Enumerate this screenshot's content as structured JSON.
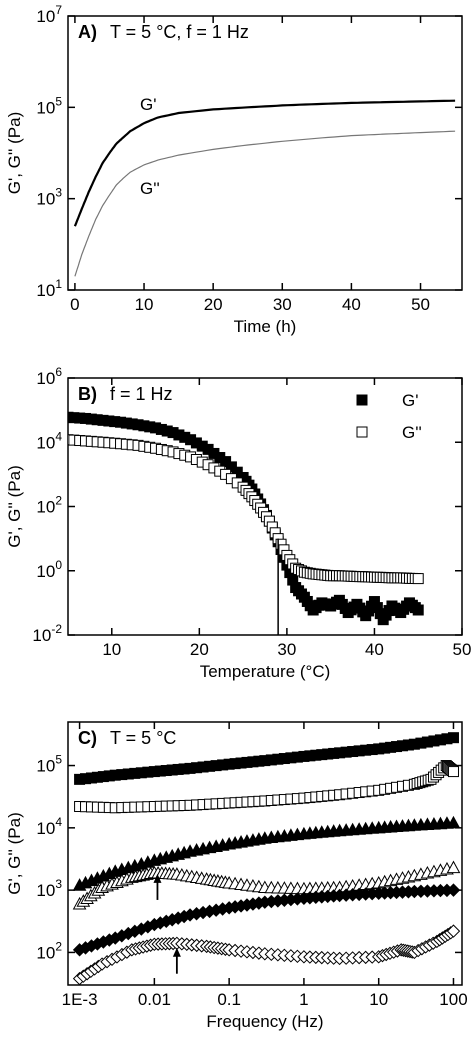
{
  "chart_data": [
    {
      "panel": "A)",
      "condition": "T = 5 °C, f = 1 Hz",
      "type": "line",
      "xlabel": "Time (h)",
      "ylabel": "G', G'' (Pa)",
      "xlim": [
        -1,
        56
      ],
      "ylim": [
        10,
        10000000
      ],
      "yscale": "log",
      "xticks": [
        "0",
        "10",
        "20",
        "30",
        "40",
        "50"
      ],
      "yticks": [
        "10^1",
        "10^3",
        "10^5",
        "10^7"
      ],
      "series": [
        {
          "name": "G'",
          "color": "#000000",
          "x": [
            0,
            1,
            2,
            3,
            4,
            5,
            6,
            7,
            8,
            10,
            12,
            15,
            20,
            25,
            30,
            35,
            40,
            45,
            50,
            55
          ],
          "values": [
            250,
            600,
            1400,
            3000,
            6000,
            10000,
            16000,
            22000,
            30000,
            45000,
            60000,
            75000,
            90000,
            100000,
            110000,
            118000,
            125000,
            130000,
            135000,
            140000
          ]
        },
        {
          "name": "G''",
          "color": "#777777",
          "x": [
            0,
            1,
            2,
            3,
            4,
            5,
            6,
            7,
            8,
            10,
            12,
            15,
            20,
            25,
            30,
            35,
            40,
            45,
            50,
            55
          ],
          "values": [
            20,
            60,
            150,
            350,
            700,
            1200,
            2000,
            2800,
            3800,
            5500,
            7000,
            9000,
            12000,
            15000,
            18000,
            21000,
            24000,
            26000,
            28000,
            30000
          ]
        }
      ]
    },
    {
      "panel": "B)",
      "condition": "f = 1 Hz",
      "type": "scatter",
      "xlabel": "Temperature (°C)",
      "ylabel": "G', G'' (Pa)",
      "xlim": [
        5,
        50
      ],
      "ylim": [
        0.01,
        1000000
      ],
      "yscale": "log",
      "xticks": [
        "10",
        "20",
        "30",
        "40",
        "50"
      ],
      "yticks": [
        "10^-2",
        "10^0",
        "10^2",
        "10^4",
        "10^6"
      ],
      "legend_position": "top-right",
      "marker_line_x": 29,
      "series": [
        {
          "name": "G'",
          "marker": "filled-square",
          "x": [
            5,
            7,
            9,
            11,
            13,
            15,
            17,
            19,
            21,
            23,
            25,
            26,
            27,
            28,
            29,
            30,
            31,
            32,
            33,
            34,
            35,
            36,
            37,
            38,
            39,
            40,
            41,
            42,
            43,
            44,
            45
          ],
          "values": [
            60000,
            55000,
            48000,
            42000,
            35000,
            28000,
            20000,
            12000,
            6000,
            2500,
            800,
            350,
            120,
            35,
            8,
            1.5,
            0.3,
            0.15,
            0.06,
            0.1,
            0.08,
            0.12,
            0.05,
            0.09,
            0.04,
            0.11,
            0.03,
            0.08,
            0.05,
            0.1,
            0.06
          ]
        },
        {
          "name": "G''",
          "marker": "open-square",
          "x": [
            5,
            7,
            9,
            11,
            13,
            15,
            17,
            19,
            21,
            23,
            25,
            26,
            27,
            28,
            29,
            30,
            31,
            32,
            33,
            34,
            35,
            36,
            37,
            38,
            39,
            40,
            41,
            42,
            43,
            44,
            45
          ],
          "values": [
            12000,
            11000,
            10000,
            9000,
            8000,
            6500,
            5000,
            3500,
            2000,
            1000,
            400,
            200,
            90,
            35,
            10,
            3,
            1.2,
            0.9,
            0.8,
            0.75,
            0.7,
            0.7,
            0.68,
            0.66,
            0.65,
            0.63,
            0.62,
            0.6,
            0.6,
            0.58,
            0.57
          ]
        }
      ]
    },
    {
      "panel": "C)",
      "condition": "T = 5 °C",
      "type": "scatter",
      "xlabel": "Frequency (Hz)",
      "ylabel": "G', G'' (Pa)",
      "xlim": [
        0.0007,
        130
      ],
      "ylim": [
        30,
        500000
      ],
      "xscale": "log",
      "yscale": "log",
      "xticks": [
        "1E-3",
        "0.01",
        "0.1",
        "1",
        "10",
        "100"
      ],
      "yticks": [
        "10^2",
        "10^3",
        "10^4",
        "10^5"
      ],
      "arrows_at_x": [
        0.011,
        0.02
      ],
      "series": [
        {
          "name": "G' (filled square)",
          "marker": "filled-square",
          "x": [
            0.001,
            0.003,
            0.01,
            0.03,
            0.1,
            0.3,
            1,
            3,
            10,
            30,
            100
          ],
          "values": [
            60000,
            70000,
            80000,
            90000,
            105000,
            120000,
            140000,
            160000,
            185000,
            220000,
            280000
          ]
        },
        {
          "name": "G'' (open square)",
          "marker": "open-square",
          "x": [
            0.001,
            0.003,
            0.01,
            0.03,
            0.1,
            0.3,
            1,
            3,
            10,
            30,
            50,
            80,
            100
          ],
          "values": [
            22000,
            21000,
            22000,
            23000,
            25000,
            27000,
            30000,
            34000,
            40000,
            50000,
            60000,
            100000,
            80000
          ]
        },
        {
          "name": "G' (filled triangle)",
          "marker": "filled-triangle",
          "x": [
            0.001,
            0.003,
            0.01,
            0.03,
            0.1,
            0.3,
            1,
            3,
            10,
            30,
            100
          ],
          "values": [
            1200,
            2000,
            3000,
            4200,
            5500,
            6800,
            8000,
            9000,
            10000,
            11000,
            12000
          ]
        },
        {
          "name": "G'' (open triangle)",
          "marker": "open-triangle",
          "x": [
            0.001,
            0.002,
            0.005,
            0.01,
            0.02,
            0.05,
            0.1,
            0.3,
            1,
            3,
            10,
            30,
            100
          ],
          "values": [
            600,
            1100,
            1600,
            1900,
            1800,
            1500,
            1300,
            1100,
            1050,
            1100,
            1300,
            1700,
            2300
          ]
        },
        {
          "name": "G' (filled diamond)",
          "marker": "filled-diamond",
          "x": [
            0.001,
            0.003,
            0.01,
            0.03,
            0.1,
            0.3,
            1,
            3,
            10,
            30,
            100
          ],
          "values": [
            110,
            170,
            280,
            400,
            520,
            640,
            740,
            820,
            890,
            950,
            1000
          ]
        },
        {
          "name": "G'' (open diamond)",
          "marker": "open-diamond",
          "x": [
            0.001,
            0.002,
            0.005,
            0.01,
            0.02,
            0.05,
            0.1,
            0.3,
            1,
            3,
            10,
            20,
            30,
            60,
            100
          ],
          "values": [
            38,
            65,
            110,
            135,
            140,
            125,
            110,
            95,
            85,
            80,
            85,
            110,
            100,
            150,
            220
          ]
        }
      ]
    }
  ]
}
